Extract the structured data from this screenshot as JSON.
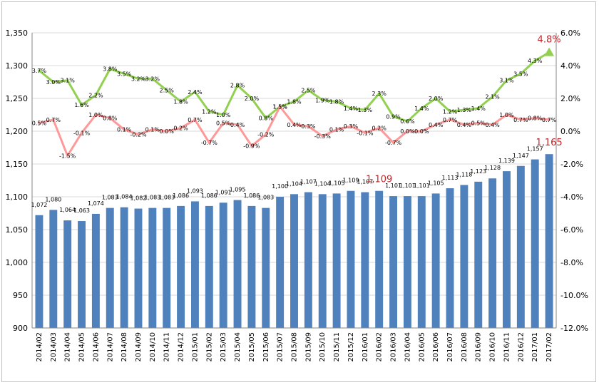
{
  "chart_data": {
    "type": "bar+line",
    "categories": [
      "2014/02",
      "2014/03",
      "2014/04",
      "2014/05",
      "2014/06",
      "2014/07",
      "2014/08",
      "2014/09",
      "2014/10",
      "2014/11",
      "2014/12",
      "2015/01",
      "2015/02",
      "2015/03",
      "2015/04",
      "2015/05",
      "2015/06",
      "2015/07",
      "2015/08",
      "2015/09",
      "2015/10",
      "2015/11",
      "2015/12",
      "2016/01",
      "2016/02",
      "2016/03",
      "2016/04",
      "2016/05",
      "2016/06",
      "2016/07",
      "2016/08",
      "2016/09",
      "2016/10",
      "2016/11",
      "2016/12",
      "2017/01",
      "2017/02"
    ],
    "bar_series": {
      "color": "#4f81bd",
      "values": [
        1072,
        1080,
        1064,
        1063,
        1074,
        1083,
        1084,
        1082,
        1083,
        1083,
        1086,
        1093,
        1086,
        1091,
        1095,
        1086,
        1083,
        1100,
        1104,
        1107,
        1104,
        1105,
        1109,
        1107,
        1109,
        1101,
        1101,
        1101,
        1105,
        1113,
        1118,
        1123,
        1128,
        1139,
        1147,
        1157,
        1165
      ],
      "labels": [
        "1,072",
        "1,080",
        "1,064",
        "1,063",
        "1,074",
        "1,083",
        "1,084",
        "1,082",
        "1,083",
        "1,083",
        "1,086",
        "1,093",
        "1,086",
        "1,091",
        "1,095",
        "1,086",
        "1,083",
        "1,100",
        "1,104",
        "1,107",
        "1,104",
        "1,105",
        "1,109",
        "1,107",
        "1,109",
        "1,101",
        "1,101",
        "1,101",
        "1,105",
        "1,113",
        "1,118",
        "1,123",
        "1,128",
        "1,139",
        "1,147",
        "1,157",
        "1,165"
      ]
    },
    "line_series": [
      {
        "color": "#92d050",
        "values": [
          3.7,
          3.0,
          3.1,
          1.6,
          2.2,
          3.8,
          3.5,
          3.2,
          3.2,
          2.5,
          1.8,
          2.4,
          1.2,
          1.0,
          2.8,
          2.0,
          0.8,
          1.5,
          1.8,
          2.5,
          1.9,
          1.8,
          1.4,
          1.3,
          2.3,
          0.9,
          0.6,
          1.4,
          2.0,
          1.2,
          1.3,
          1.4,
          2.1,
          3.1,
          3.5,
          4.3,
          4.8
        ],
        "labels": [
          "3.7%",
          "3.0%",
          "3.1%",
          "1.6%",
          "2.2%",
          "3.8%",
          "3.5%",
          "3.2%",
          "3.2%",
          "2.5%",
          "1.8%",
          "2.4%",
          "1.2%",
          "1.0%",
          "2.8%",
          "2.0%",
          "0.8%",
          "1.5%",
          "1.8%",
          "2.5%",
          "1.9%",
          "1.8%",
          "1.4%",
          "1.3%",
          "2.3%",
          "0.9%",
          "0.6%",
          "1.4%",
          "2.0%",
          "1.2%",
          "1.3%",
          "1.4%",
          "2.1%",
          "3.1%",
          "3.5%",
          "4.3%",
          "4.8%"
        ]
      },
      {
        "color": "#ff9999",
        "values": [
          0.5,
          0.7,
          -1.5,
          -0.1,
          1.0,
          0.8,
          0.1,
          -0.2,
          0.1,
          0.0,
          0.2,
          0.7,
          -0.7,
          0.5,
          0.4,
          -0.9,
          -0.2,
          1.5,
          0.4,
          0.3,
          -0.3,
          0.1,
          0.3,
          -0.1,
          0.2,
          -0.7,
          0.0,
          0.0,
          0.4,
          0.7,
          0.4,
          0.5,
          0.4,
          1.0,
          0.7,
          0.8,
          0.7
        ],
        "labels": [
          "0.5%",
          "0.7%",
          "-1.5%",
          "-0.1%",
          "1.0%",
          "0.8%",
          "0.1%",
          "-0.2%",
          "0.1%",
          "0.0%",
          "0.2%",
          "0.7%",
          "-0.7%",
          "0.5%",
          "0.4%",
          "-0.9%",
          "-0.2%",
          "1.5%",
          "0.4%",
          "0.3%",
          "-0.3%",
          "0.1%",
          "0.3%",
          "-0.1%",
          "0.2%",
          "-0.7%",
          "0.0%",
          "0.0%",
          "0.4%",
          "0.7%",
          "0.4%",
          "0.5%",
          "0.4%",
          "1.0%",
          "0.7%",
          "0.8%",
          "0.7%"
        ]
      }
    ],
    "y_left": {
      "min": 900,
      "max": 1350,
      "ticks": [
        900,
        950,
        1000,
        1050,
        1100,
        1150,
        1200,
        1250,
        1300,
        1350
      ],
      "tick_labels": [
        "900",
        "950",
        "1,000",
        "1,050",
        "1,100",
        "1,150",
        "1,200",
        "1,250",
        "1,300",
        "1,350"
      ]
    },
    "y_right": {
      "min": -12,
      "max": 6,
      "ticks": [
        -12,
        -10,
        -8,
        -6,
        -4,
        -2,
        0,
        2,
        4,
        6
      ],
      "tick_labels": [
        "-12.0%",
        "-10.0%",
        "-8.0%",
        "-6.0%",
        "-4.0%",
        "-2.0%",
        "0.0%",
        "2.0%",
        "4.0%",
        "6.0%"
      ]
    },
    "grid": {
      "horizontal": true,
      "color": "#d9d9d9"
    },
    "callouts": [
      {
        "text": "1,109",
        "category": "2016/02",
        "axis": "left",
        "value": 1109,
        "color": "#c0272d"
      },
      {
        "text": "1,165",
        "category": "2017/02",
        "axis": "left",
        "value": 1165,
        "color": "#c0272d"
      },
      {
        "text": "4.8%",
        "category": "2017/02",
        "axis": "right",
        "value": 4.8,
        "color": "#c0272d"
      }
    ]
  }
}
